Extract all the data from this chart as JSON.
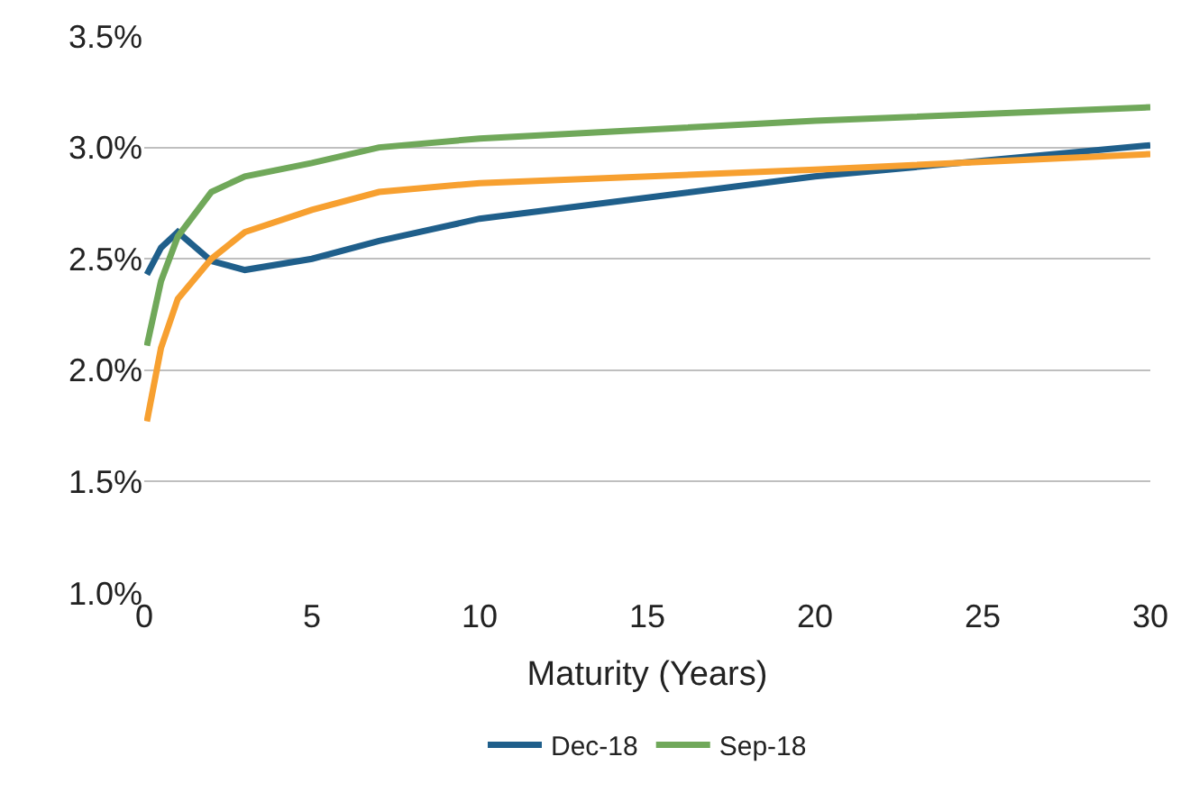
{
  "chart_data": {
    "type": "line",
    "xlabel": "Maturity (Years)",
    "x": [
      0.08,
      0.5,
      1,
      2,
      3,
      5,
      7,
      10,
      20,
      30
    ],
    "series": [
      {
        "name": "Dec-18",
        "color": "#1f5f8b",
        "values": [
          2.43,
          2.55,
          2.62,
          2.49,
          2.45,
          2.5,
          2.58,
          2.68,
          2.87,
          3.01
        ]
      },
      {
        "name": "Sep-18",
        "color": "#70a85a",
        "values": [
          2.11,
          2.4,
          2.6,
          2.8,
          2.87,
          2.93,
          3.0,
          3.04,
          3.12,
          3.18
        ]
      },
      {
        "color": "#f7a030",
        "values": [
          1.77,
          2.1,
          2.32,
          2.5,
          2.62,
          2.72,
          2.8,
          2.84,
          2.9,
          2.97
        ]
      }
    ],
    "xlim": [
      0,
      30
    ],
    "xticks": [
      0,
      5,
      10,
      15,
      20,
      25,
      30
    ],
    "ylim": [
      1.0,
      3.5
    ],
    "yticks": [
      {
        "value": 1.0,
        "label": "1.0%"
      },
      {
        "value": 1.5,
        "label": "1.5%"
      },
      {
        "value": 2.0,
        "label": "2.0%"
      },
      {
        "value": 2.5,
        "label": "2.5%"
      },
      {
        "value": 3.0,
        "label": "3.0%"
      },
      {
        "value": 3.5,
        "label": "3.5%"
      }
    ],
    "grid": "y",
    "legend": "bottom",
    "marker": "none",
    "line_style": "solid"
  }
}
